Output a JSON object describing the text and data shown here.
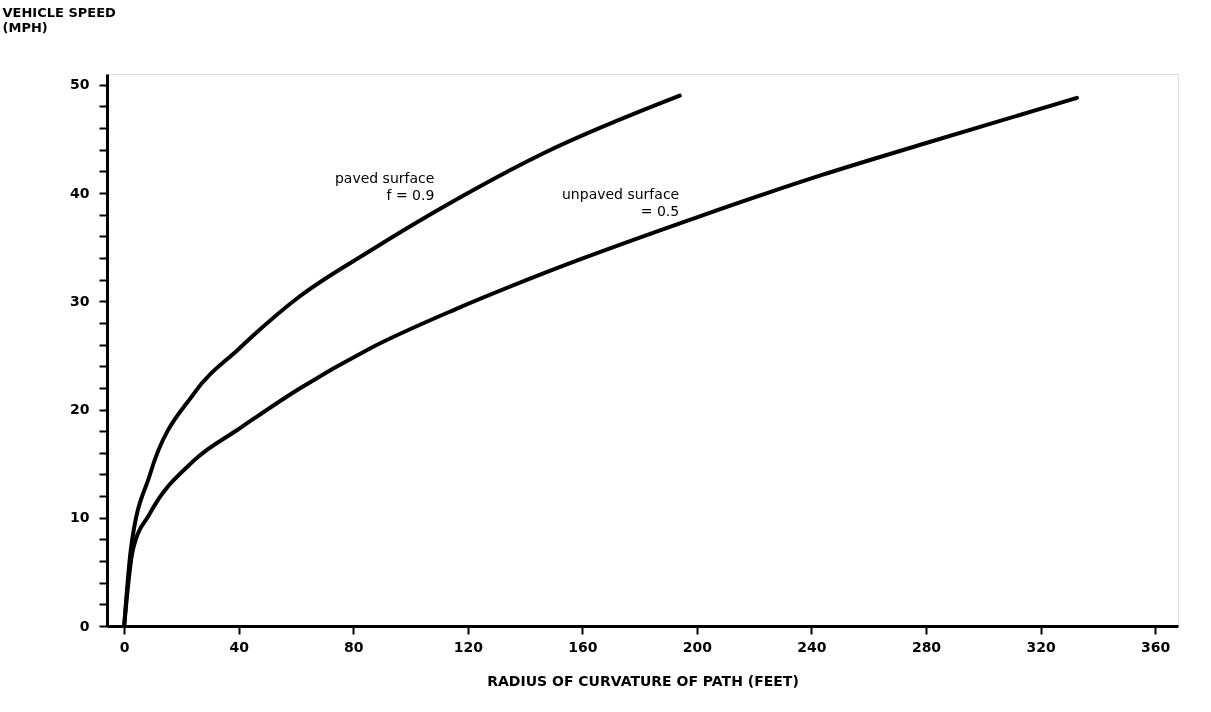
{
  "chart_data": {
    "type": "line",
    "xlabel": "RADIUS OF CURVATURE OF PATH (FEET)",
    "ylabel": "VEHICLE SPEED\n(MPH)",
    "xlim": [
      -6,
      368
    ],
    "ylim": [
      0,
      51
    ],
    "xticks": [
      0,
      40,
      80,
      120,
      160,
      200,
      240,
      280,
      320,
      360
    ],
    "yticks": [
      0,
      {
        "value": 2,
        "label": null
      },
      {
        "value": 4,
        "label": null
      },
      {
        "value": 6,
        "label": null
      },
      {
        "value": 8,
        "label": null
      },
      10,
      {
        "value": 12,
        "label": null
      },
      {
        "value": 14,
        "label": null
      },
      {
        "value": 16,
        "label": null
      },
      {
        "value": 18,
        "label": null
      },
      20,
      {
        "value": 22,
        "label": null
      },
      {
        "value": 24,
        "label": null
      },
      {
        "value": 26,
        "label": null
      },
      {
        "value": 28,
        "label": null
      },
      30,
      {
        "value": 32,
        "label": null
      },
      {
        "value": 34,
        "label": null
      },
      {
        "value": 36,
        "label": null
      },
      {
        "value": 38,
        "label": null
      },
      40,
      {
        "value": 42,
        "label": null
      },
      {
        "value": 44,
        "label": null
      },
      {
        "value": 46,
        "label": null
      },
      {
        "value": 48,
        "label": null
      },
      50
    ],
    "grid": false,
    "legend": false,
    "marker": "none",
    "line_style": "solid",
    "series": [
      {
        "name": "paved surface\nf = 0.9",
        "color": "#000000",
        "x": [
          0,
          2.3,
          9,
          24.4,
          40,
          61,
          85.5,
          116,
          146.6,
          194
        ],
        "values": [
          0,
          7,
          14,
          21.5,
          25.6,
          30.4,
          34.6,
          39.4,
          43.7,
          49
        ]
      },
      {
        "name": "unpaved surface\n = 0.5",
        "color": "#000000",
        "x": [
          0,
          3,
          9,
          24.4,
          40,
          61,
          85.5,
          116,
          146.6,
          201.5,
          244,
          279.8,
          332.7
        ],
        "values": [
          0,
          7,
          10.4,
          15.3,
          18.2,
          21.9,
          25.6,
          29.3,
          32.6,
          37.9,
          41.7,
          44.6,
          48.8
        ]
      }
    ]
  }
}
